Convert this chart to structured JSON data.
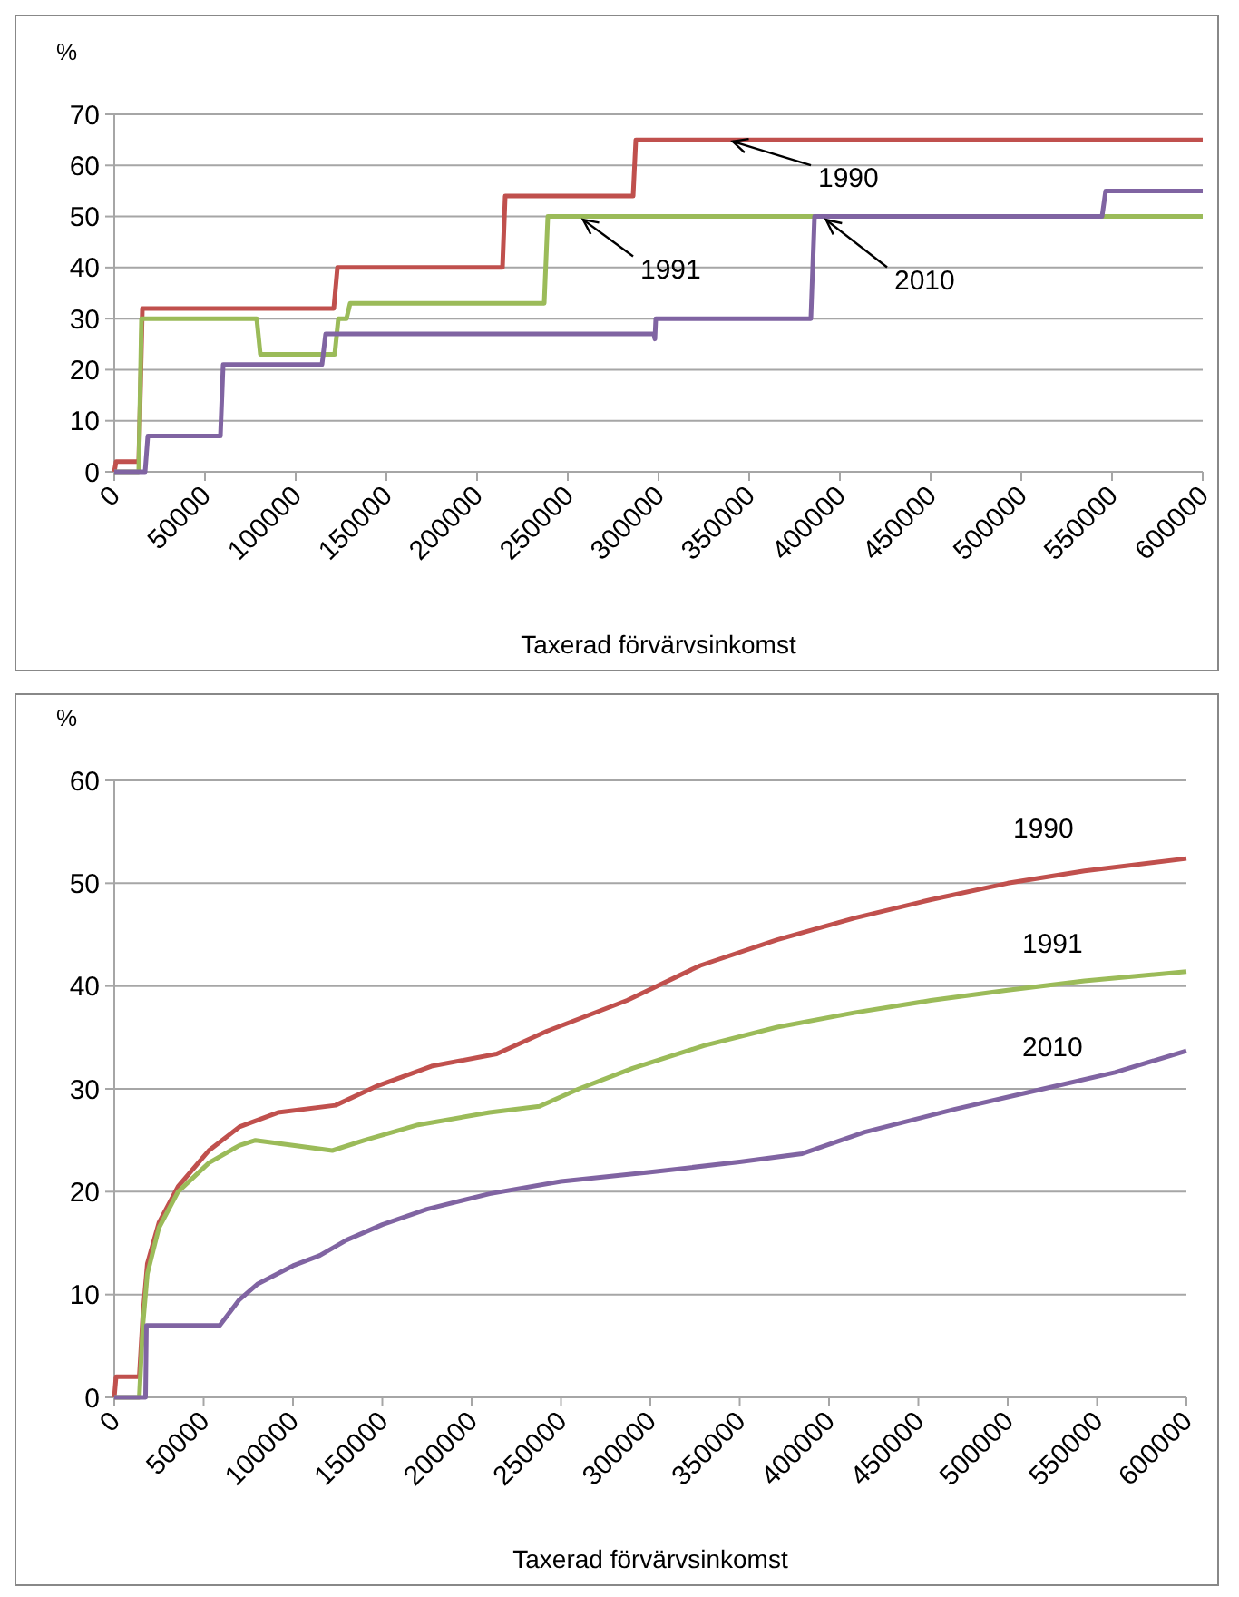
{
  "chart_data": [
    {
      "type": "line",
      "ylabel": "%",
      "xlabel": "Taxerad förvärvsinkomst",
      "xlim": [
        0,
        600000
      ],
      "xticks": [
        0,
        50000,
        100000,
        150000,
        200000,
        250000,
        300000,
        350000,
        400000,
        450000,
        500000,
        550000,
        600000
      ],
      "ylim": [
        0,
        70
      ],
      "yticks": [
        0,
        10,
        20,
        30,
        40,
        50,
        60,
        70
      ],
      "grid": "y",
      "series": [
        {
          "name": "1990",
          "color": "#c0504d",
          "x": [
            0,
            1000,
            13500,
            15500,
            121000,
            123000,
            214000,
            215500,
            286000,
            287500,
            600000
          ],
          "values": [
            0,
            2,
            2,
            32,
            32,
            40,
            40,
            54,
            54,
            65,
            65
          ]
        },
        {
          "name": "1991",
          "color": "#9bbb59",
          "x": [
            0,
            13500,
            15000,
            78500,
            80500,
            121500,
            123500,
            128000,
            130000,
            237000,
            239000,
            600000
          ],
          "values": [
            0,
            0,
            30,
            30,
            23,
            23,
            30,
            30,
            33,
            33,
            50,
            50
          ]
        },
        {
          "name": "2010",
          "color": "#8064a2",
          "x": [
            0,
            17000,
            18500,
            58500,
            60000,
            114500,
            116500,
            297500,
            298000,
            298500,
            384000,
            386000,
            544500,
            546500,
            600000
          ],
          "values": [
            0,
            0,
            7,
            7,
            21,
            21,
            27,
            27,
            26,
            30,
            30,
            50,
            50,
            55,
            55
          ]
        }
      ]
    },
    {
      "type": "line",
      "ylabel": "%",
      "xlabel": "Taxerad förvärvsinkomst",
      "xlim": [
        0,
        600000
      ],
      "xticks": [
        0,
        50000,
        100000,
        150000,
        200000,
        250000,
        300000,
        350000,
        400000,
        450000,
        500000,
        550000,
        600000
      ],
      "ylim": [
        0,
        60
      ],
      "yticks": [
        0,
        10,
        20,
        30,
        40,
        50,
        60
      ],
      "grid": "y",
      "series": [
        {
          "name": "1990",
          "color": "#c0504d",
          "x": [
            0,
            1000,
            14000,
            16000,
            18500,
            25000,
            35700,
            52900,
            70000,
            91600,
            123800,
            147400,
            177500,
            214000,
            242000,
            287000,
            328000,
            371000,
            414000,
            457000,
            500000,
            543000,
            600000
          ],
          "values": [
            0,
            2,
            2,
            8,
            13,
            17,
            20.5,
            24,
            26.3,
            27.7,
            28.4,
            30.3,
            32.2,
            33.4,
            35.6,
            38.6,
            42,
            44.5,
            46.6,
            48.4,
            50,
            51.2,
            52.4
          ]
        },
        {
          "name": "1991",
          "color": "#9bbb59",
          "x": [
            0,
            14000,
            16000,
            18500,
            25000,
            35700,
            52900,
            70000,
            79000,
            100000,
            122000,
            140000,
            170000,
            210000,
            238000,
            260000,
            290000,
            330000,
            371000,
            414000,
            457000,
            500000,
            543000,
            600000
          ],
          "values": [
            0,
            0,
            7,
            12,
            16.5,
            20,
            22.8,
            24.5,
            25,
            24.5,
            24,
            25,
            26.5,
            27.7,
            28.3,
            30,
            32,
            34.2,
            36,
            37.4,
            38.6,
            39.6,
            40.5,
            41.4
          ]
        },
        {
          "name": "2010",
          "color": "#8064a2",
          "x": [
            0,
            17500,
            18000,
            59000,
            70000,
            80000,
            100000,
            115000,
            130000,
            150000,
            175000,
            210000,
            250000,
            300000,
            350000,
            385000,
            420000,
            470000,
            520000,
            560000,
            600000
          ],
          "values": [
            0,
            0,
            7,
            7,
            9.5,
            11,
            12.8,
            13.8,
            15.3,
            16.8,
            18.3,
            19.8,
            21,
            21.9,
            22.9,
            23.7,
            25.8,
            28,
            30,
            31.6,
            33.7
          ]
        }
      ]
    }
  ]
}
